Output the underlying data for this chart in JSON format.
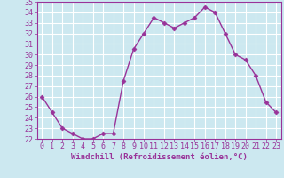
{
  "x": [
    0,
    1,
    2,
    3,
    4,
    5,
    6,
    7,
    8,
    9,
    10,
    11,
    12,
    13,
    14,
    15,
    16,
    17,
    18,
    19,
    20,
    21,
    22,
    23
  ],
  "y": [
    26.0,
    24.5,
    23.0,
    22.5,
    22.0,
    22.0,
    22.5,
    22.5,
    27.5,
    30.5,
    32.0,
    33.5,
    33.0,
    32.5,
    33.0,
    33.5,
    34.5,
    34.0,
    32.0,
    30.0,
    29.5,
    28.0,
    25.5,
    24.5
  ],
  "xlabel": "Windchill (Refroidissement éolien,°C)",
  "ylim": [
    22,
    35
  ],
  "xlim": [
    -0.5,
    23.5
  ],
  "yticks": [
    22,
    23,
    24,
    25,
    26,
    27,
    28,
    29,
    30,
    31,
    32,
    33,
    34,
    35
  ],
  "xticks": [
    0,
    1,
    2,
    3,
    4,
    5,
    6,
    7,
    8,
    9,
    10,
    11,
    12,
    13,
    14,
    15,
    16,
    17,
    18,
    19,
    20,
    21,
    22,
    23
  ],
  "line_color": "#993399",
  "marker": "D",
  "marker_size": 2.5,
  "bg_color": "#cce8f0",
  "grid_color": "#ffffff",
  "xlabel_color": "#993399",
  "tick_color": "#993399",
  "axis_label_fontsize": 6.5,
  "tick_fontsize": 6.0,
  "linewidth": 1.0
}
